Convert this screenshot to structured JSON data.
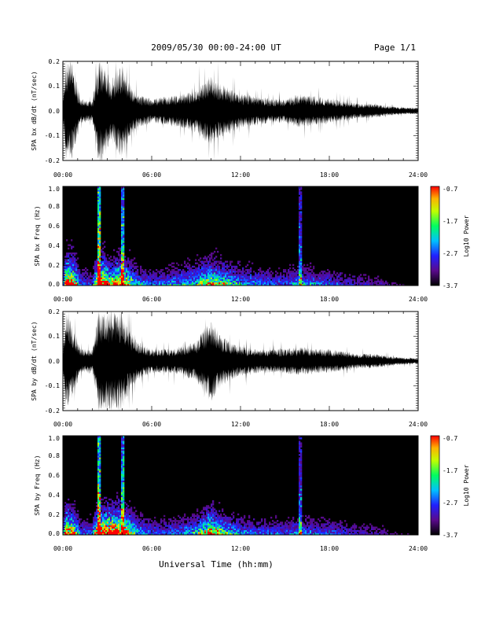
{
  "header": {
    "title": "2009/05/30  00:00-24:00 UT",
    "page": "Page 1/1"
  },
  "xlabel": "Universal Time (hh:mm)",
  "chart_data": [
    {
      "type": "line",
      "ylabel": "SPA bx dB/dt (nT/sec)",
      "ylim": [
        -0.2,
        0.2
      ],
      "yticks": [
        "0.2",
        "0.1",
        "0.0",
        "-0.1",
        "-0.2"
      ],
      "xticks": [
        "00:00",
        "06:00",
        "12:00",
        "18:00",
        "24:00"
      ],
      "xlim": [
        0,
        24
      ],
      "amplitude_envelope": {
        "x": [
          0.0,
          0.2,
          0.6,
          1.2,
          2.0,
          2.4,
          2.8,
          3.2,
          3.6,
          4.0,
          4.4,
          5.0,
          6.0,
          7.0,
          8.0,
          9.0,
          9.5,
          10.0,
          10.5,
          11.0,
          12.0,
          13.0,
          14.0,
          15.0,
          16.0,
          17.0,
          18.0,
          19.0,
          20.0,
          21.0,
          22.0,
          23.0,
          24.0
        ],
        "amp": [
          0.03,
          0.2,
          0.2,
          0.05,
          0.04,
          0.2,
          0.2,
          0.12,
          0.16,
          0.2,
          0.13,
          0.07,
          0.05,
          0.06,
          0.07,
          0.09,
          0.12,
          0.14,
          0.12,
          0.1,
          0.07,
          0.06,
          0.05,
          0.05,
          0.07,
          0.06,
          0.05,
          0.04,
          0.03,
          0.03,
          0.02,
          0.015,
          0.012
        ]
      }
    },
    {
      "type": "heatmap",
      "ylabel": "SPA bx Freq (Hz)",
      "ylim": [
        0.0,
        1.0
      ],
      "yticks": [
        "1.0",
        "0.8",
        "0.6",
        "0.4",
        "0.2",
        "0.0"
      ],
      "xticks": [
        "00:00",
        "06:00",
        "12:00",
        "18:00",
        "24:00"
      ],
      "xlim": [
        0,
        24
      ],
      "colorbar": {
        "label": "Log10 Power",
        "ticks": [
          "-0.7",
          "-1.7",
          "-2.7",
          "-3.7"
        ],
        "range": [
          -3.7,
          -0.7
        ]
      }
    },
    {
      "type": "line",
      "ylabel": "SPA by dB/dt (nT/sec)",
      "ylim": [
        -0.2,
        0.2
      ],
      "yticks": [
        "0.2",
        "0.1",
        "0.0",
        "-0.1",
        "-0.2"
      ],
      "xticks": [
        "00:00",
        "06:00",
        "12:00",
        "18:00",
        "24:00"
      ],
      "xlim": [
        0,
        24
      ],
      "amplitude_envelope": {
        "x": [
          0.0,
          0.2,
          0.6,
          1.2,
          2.0,
          2.4,
          2.8,
          3.2,
          3.6,
          4.0,
          4.4,
          5.0,
          6.0,
          7.0,
          8.0,
          9.0,
          9.5,
          10.0,
          10.5,
          11.0,
          12.0,
          13.0,
          14.0,
          15.0,
          16.0,
          17.0,
          18.0,
          19.0,
          20.0,
          21.0,
          22.0,
          23.0,
          24.0
        ],
        "amp": [
          0.04,
          0.2,
          0.16,
          0.05,
          0.05,
          0.2,
          0.2,
          0.2,
          0.2,
          0.2,
          0.14,
          0.08,
          0.05,
          0.05,
          0.06,
          0.08,
          0.13,
          0.17,
          0.12,
          0.09,
          0.06,
          0.05,
          0.05,
          0.05,
          0.06,
          0.05,
          0.05,
          0.04,
          0.03,
          0.03,
          0.02,
          0.015,
          0.012
        ]
      }
    },
    {
      "type": "heatmap",
      "ylabel": "SPA by Freq (Hz)",
      "ylim": [
        0.0,
        1.0
      ],
      "yticks": [
        "1.0",
        "0.8",
        "0.6",
        "0.4",
        "0.2",
        "0.0"
      ],
      "xticks": [
        "00:00",
        "06:00",
        "12:00",
        "18:00",
        "24:00"
      ],
      "xlim": [
        0,
        24
      ],
      "colorbar": {
        "label": "Log10 Power",
        "ticks": [
          "-0.7",
          "-1.7",
          "-2.7",
          "-3.7"
        ],
        "range": [
          -3.7,
          -0.7
        ]
      }
    }
  ]
}
